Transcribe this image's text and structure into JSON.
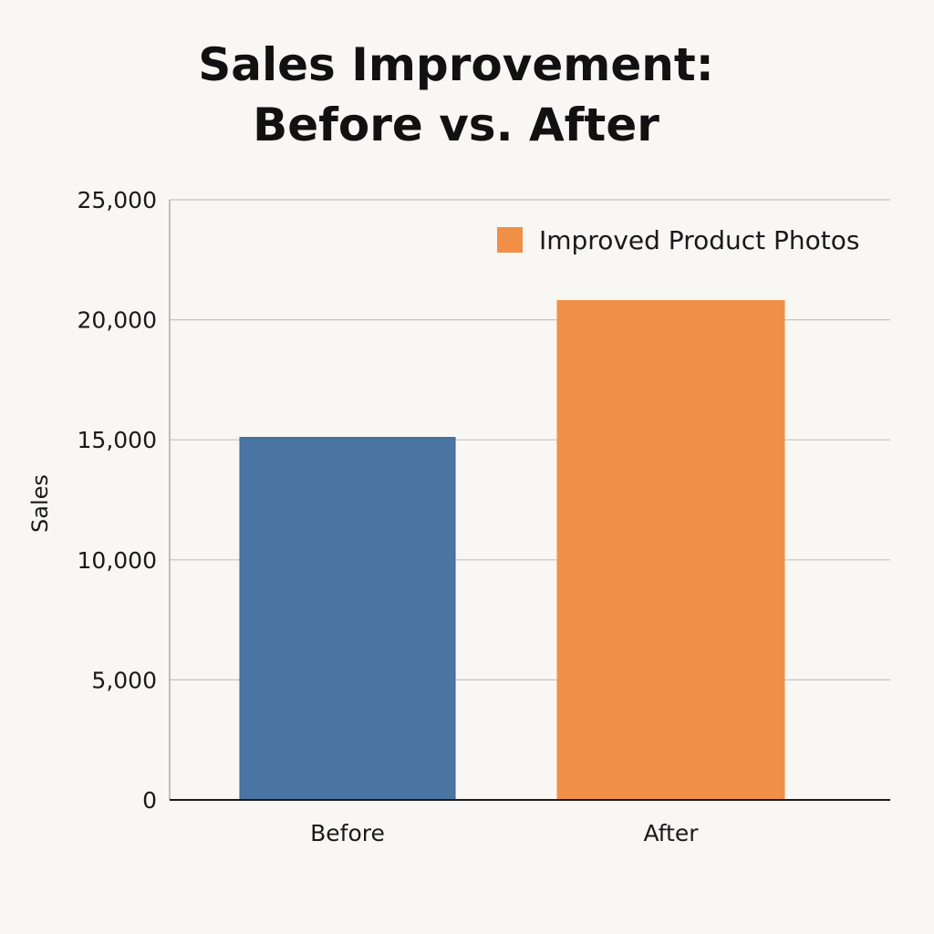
{
  "chart_data": {
    "type": "bar",
    "title_line1": "Sales Improvement:",
    "title_line2": "Before vs. After",
    "xlabel": "",
    "ylabel": "Sales",
    "categories": [
      "Before",
      "After"
    ],
    "values": [
      15100,
      20800
    ],
    "bar_colors": [
      "#4a74a2",
      "#f28f46"
    ],
    "ylim": [
      0,
      25000
    ],
    "yticks": [
      0,
      5000,
      10000,
      15000,
      20000,
      25000
    ],
    "ytick_labels": [
      "0",
      "5,000",
      "10,000",
      "15,000",
      "20,000",
      "25,000"
    ],
    "grid": true,
    "legend": {
      "placement": "top-right",
      "entries": [
        {
          "label": "Improved Product Photos",
          "color": "#f28f46"
        }
      ]
    }
  }
}
